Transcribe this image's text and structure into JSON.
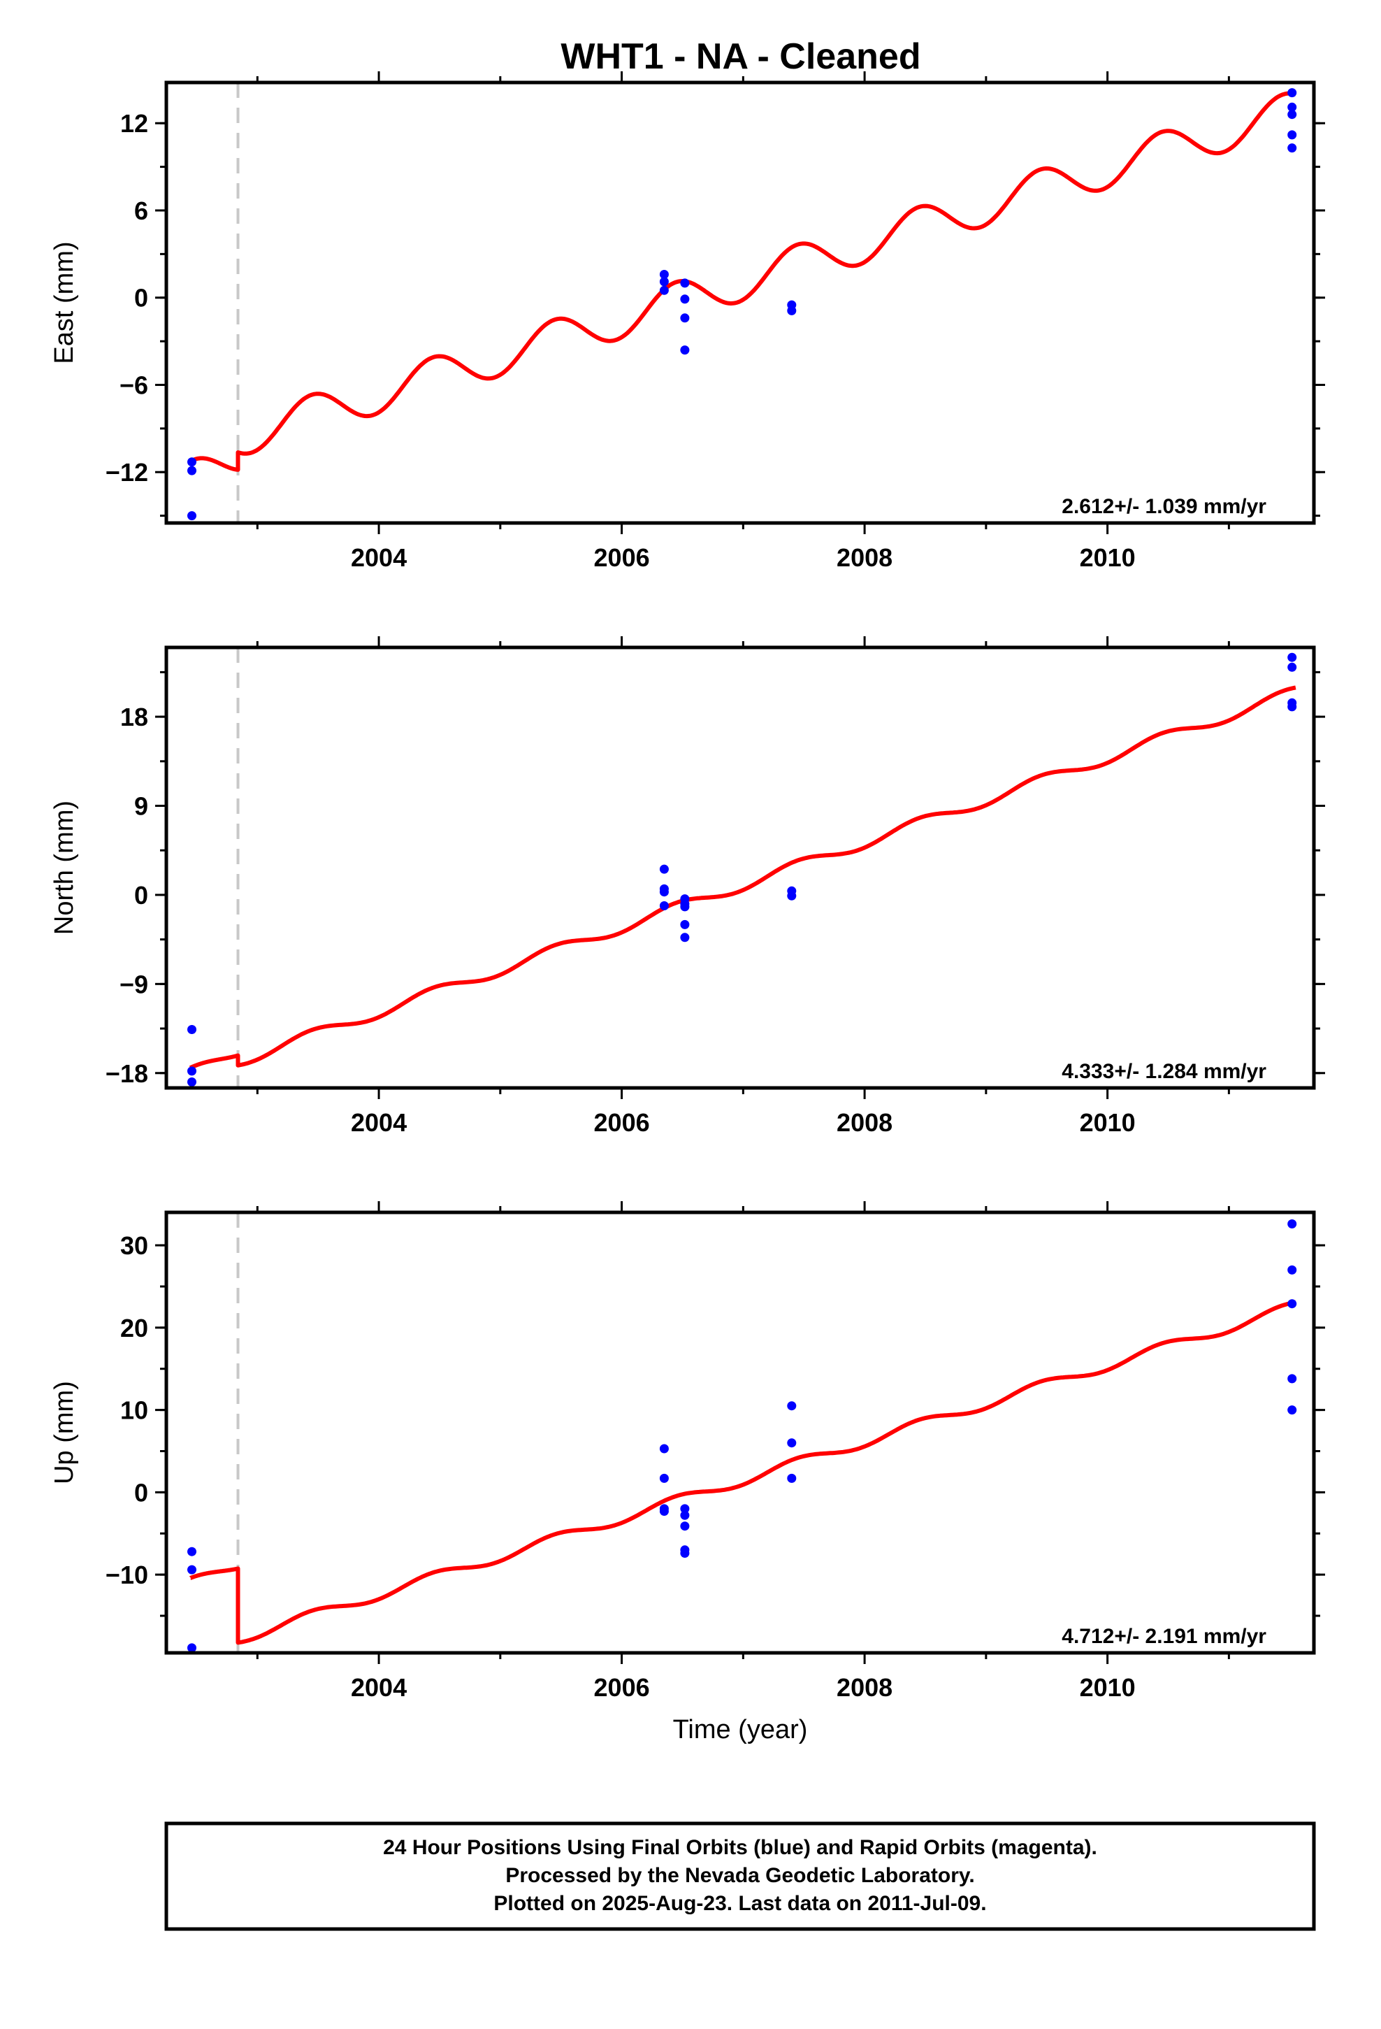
{
  "title": "WHT1  - NA - Cleaned",
  "caption": [
    "24 Hour Positions Using Final Orbits (blue) and Rapid Orbits (magenta).",
    "Processed by the Nevada Geodetic Laboratory.",
    "Plotted on 2025-Aug-23. Last data on 2011-Jul-09."
  ],
  "colors": {
    "model": "#ff0000",
    "points": "#0000ff",
    "event_line": "#c8c8c8",
    "frame": "#000000"
  },
  "chart_data": [
    {
      "type": "scatter",
      "component": "east",
      "ylabel": "East (mm)",
      "xlabel": "",
      "xlim": [
        2002.25,
        2011.7
      ],
      "ylim": [
        -15.5,
        14.8
      ],
      "xticks": [
        2004,
        2006,
        2008,
        2010
      ],
      "yticks": [
        -12,
        -6,
        0,
        6,
        12
      ],
      "rate_label": "2.612+/- 1.039 mm/yr",
      "event_x": 2002.84,
      "model": {
        "color": "#ff0000",
        "segment1": {
          "t0": 2002.45,
          "t1": 2002.84,
          "y0": -12.6,
          "y1": -10.8
        },
        "segment2": {
          "t0": 2002.84,
          "t1": 2011.55,
          "y0": -9.6,
          "y1": 12.9
        },
        "annual_amp": 1.35,
        "annual_phase": 0.2
      },
      "points": [
        {
          "x": 2002.46,
          "y": -11.3
        },
        {
          "x": 2002.46,
          "y": -11.9
        },
        {
          "x": 2002.46,
          "y": -15.0
        },
        {
          "x": 2006.35,
          "y": 1.6
        },
        {
          "x": 2006.35,
          "y": 1.1
        },
        {
          "x": 2006.35,
          "y": 0.5
        },
        {
          "x": 2006.52,
          "y": 1.0
        },
        {
          "x": 2006.52,
          "y": -0.1
        },
        {
          "x": 2006.52,
          "y": -1.4
        },
        {
          "x": 2006.52,
          "y": -3.6
        },
        {
          "x": 2007.4,
          "y": -0.5
        },
        {
          "x": 2007.4,
          "y": -0.9
        },
        {
          "x": 2011.52,
          "y": 14.1
        },
        {
          "x": 2011.52,
          "y": 13.1
        },
        {
          "x": 2011.52,
          "y": 12.6
        },
        {
          "x": 2011.52,
          "y": 11.2
        },
        {
          "x": 2011.52,
          "y": 10.3
        }
      ]
    },
    {
      "type": "scatter",
      "component": "north",
      "ylabel": "North (mm)",
      "xlabel": "",
      "xlim": [
        2002.25,
        2011.7
      ],
      "ylim": [
        -19.5,
        25.0
      ],
      "xticks": [
        2004,
        2006,
        2008,
        2010
      ],
      "yticks": [
        -18,
        -9,
        0,
        9,
        18
      ],
      "rate_label": "4.333+/- 1.284 mm/yr",
      "event_x": 2002.84,
      "model": {
        "color": "#ff0000",
        "segment1": {
          "t0": 2002.45,
          "t1": 2002.84,
          "y0": -18.0,
          "y1": -15.8
        },
        "segment2": {
          "t0": 2002.84,
          "t1": 2011.55,
          "y0": -16.8,
          "y1": 20.5
        },
        "annual_amp": 0.55,
        "annual_phase": 0.2
      },
      "points": [
        {
          "x": 2002.46,
          "y": -13.6
        },
        {
          "x": 2002.46,
          "y": -17.8
        },
        {
          "x": 2002.46,
          "y": -18.9
        },
        {
          "x": 2006.35,
          "y": 2.6
        },
        {
          "x": 2006.35,
          "y": 0.6
        },
        {
          "x": 2006.35,
          "y": 0.3
        },
        {
          "x": 2006.35,
          "y": -1.1
        },
        {
          "x": 2006.52,
          "y": -0.4
        },
        {
          "x": 2006.52,
          "y": -0.9
        },
        {
          "x": 2006.52,
          "y": -1.2
        },
        {
          "x": 2006.52,
          "y": -3.0
        },
        {
          "x": 2006.52,
          "y": -4.3
        },
        {
          "x": 2007.4,
          "y": 0.4
        },
        {
          "x": 2007.4,
          "y": -0.1
        },
        {
          "x": 2011.52,
          "y": 24.0
        },
        {
          "x": 2011.52,
          "y": 23.0
        },
        {
          "x": 2011.52,
          "y": 19.4
        },
        {
          "x": 2011.52,
          "y": 19.0
        }
      ]
    },
    {
      "type": "scatter",
      "component": "up",
      "ylabel": "Up (mm)",
      "xlabel": "Time (year)",
      "xlim": [
        2002.25,
        2011.7
      ],
      "ylim": [
        -19.5,
        34.0
      ],
      "xticks": [
        2004,
        2006,
        2008,
        2010
      ],
      "yticks": [
        -10,
        0,
        10,
        20,
        30
      ],
      "rate_label": "4.712+/- 2.191 mm/yr",
      "event_x": 2002.84,
      "model": {
        "color": "#ff0000",
        "segment1": {
          "t0": 2002.45,
          "t1": 2002.84,
          "y0": -11.0,
          "y1": -8.8
        },
        "segment2": {
          "t0": 2002.84,
          "t1": 2011.55,
          "y0": -17.8,
          "y1": 22.6
        },
        "annual_amp": 0.6,
        "annual_phase": 0.2
      },
      "points": [
        {
          "x": 2002.46,
          "y": -7.2
        },
        {
          "x": 2002.46,
          "y": -9.4
        },
        {
          "x": 2002.46,
          "y": -18.9
        },
        {
          "x": 2006.35,
          "y": 5.3
        },
        {
          "x": 2006.35,
          "y": 1.7
        },
        {
          "x": 2006.35,
          "y": -2.0
        },
        {
          "x": 2006.35,
          "y": -2.3
        },
        {
          "x": 2006.52,
          "y": -2.0
        },
        {
          "x": 2006.52,
          "y": -2.8
        },
        {
          "x": 2006.52,
          "y": -4.1
        },
        {
          "x": 2006.52,
          "y": -7.0
        },
        {
          "x": 2006.52,
          "y": -7.4
        },
        {
          "x": 2007.4,
          "y": 10.5
        },
        {
          "x": 2007.4,
          "y": 6.0
        },
        {
          "x": 2007.4,
          "y": 1.7
        },
        {
          "x": 2011.52,
          "y": 32.6
        },
        {
          "x": 2011.52,
          "y": 27.0
        },
        {
          "x": 2011.52,
          "y": 22.9
        },
        {
          "x": 2011.52,
          "y": 13.8
        },
        {
          "x": 2011.52,
          "y": 10.0
        }
      ]
    }
  ]
}
